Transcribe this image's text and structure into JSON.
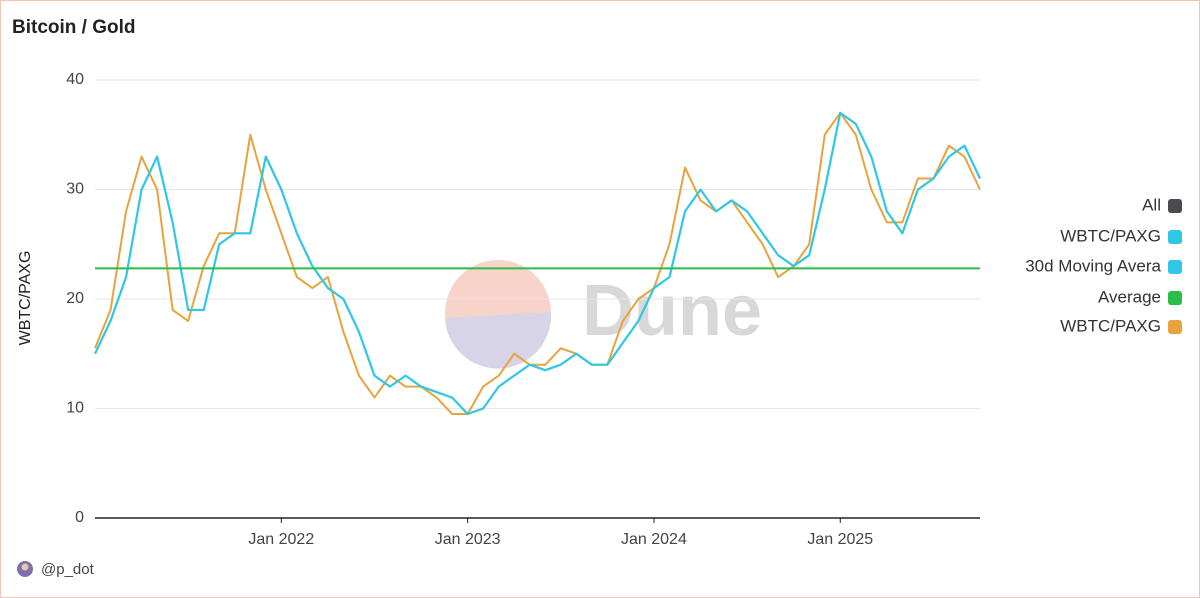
{
  "chart_data": {
    "type": "line",
    "title": "Bitcoin / Gold",
    "y_label": "WBTC/PAXG",
    "watermark": "Dune",
    "author": "@p_dot",
    "x": [
      "2021-01",
      "2021-02",
      "2021-03",
      "2021-04",
      "2021-05",
      "2021-06",
      "2021-07",
      "2021-08",
      "2021-09",
      "2021-10",
      "2021-11",
      "2021-12",
      "2022-01",
      "2022-02",
      "2022-03",
      "2022-04",
      "2022-05",
      "2022-06",
      "2022-07",
      "2022-08",
      "2022-09",
      "2022-10",
      "2022-11",
      "2022-12",
      "2023-01",
      "2023-02",
      "2023-03",
      "2023-04",
      "2023-05",
      "2023-06",
      "2023-07",
      "2023-08",
      "2023-09",
      "2023-10",
      "2023-11",
      "2023-12",
      "2024-01",
      "2024-02",
      "2024-03",
      "2024-04",
      "2024-05",
      "2024-06",
      "2024-07",
      "2024-08",
      "2024-09",
      "2024-10",
      "2024-11",
      "2024-12",
      "2025-01",
      "2025-02",
      "2025-03",
      "2025-04",
      "2025-05",
      "2025-06",
      "2025-07",
      "2025-08",
      "2025-09",
      "2025-10"
    ],
    "xlim": [
      "2021-01",
      "2025-10"
    ],
    "xticks": [
      {
        "value": "2022-01",
        "label": "Jan 2022"
      },
      {
        "value": "2023-01",
        "label": "Jan 2023"
      },
      {
        "value": "2024-01",
        "label": "Jan 2024"
      },
      {
        "value": "2025-01",
        "label": "Jan 2025"
      }
    ],
    "ylim": [
      0,
      40
    ],
    "yticks": [
      0,
      10,
      20,
      30,
      40
    ],
    "grid": true,
    "legend_position": "right",
    "series": [
      {
        "name": "All",
        "color": "#4a4a4f"
      },
      {
        "name": "WBTC/PAXG",
        "color": "#2ec7e6"
      },
      {
        "name": "30d Moving Avera",
        "color": "#2ec7e6",
        "values": [
          15,
          18,
          22,
          30,
          33,
          27,
          19,
          19,
          25,
          26,
          26,
          33,
          30,
          26,
          23,
          21,
          20,
          17,
          13,
          12,
          13,
          12,
          11.5,
          11,
          9.5,
          10,
          12,
          13,
          14,
          13.5,
          14,
          15,
          14,
          14,
          16,
          18,
          21,
          22,
          28,
          30,
          28,
          29,
          28,
          26,
          24,
          23,
          24,
          30,
          37,
          36,
          33,
          28,
          26,
          30,
          31,
          33,
          34,
          31
        ]
      },
      {
        "name": "Average",
        "color": "#2bbd47",
        "value": 22.8
      },
      {
        "name": "WBTC/PAXG",
        "color": "#e8a33d",
        "values": [
          15.5,
          19,
          28,
          33,
          30,
          19,
          18,
          23,
          26,
          26,
          35,
          30,
          26,
          22,
          21,
          22,
          17,
          13,
          11,
          13,
          12,
          12,
          11,
          9.5,
          9.5,
          12,
          13,
          15,
          14,
          14,
          15.5,
          15,
          14,
          14,
          18,
          20,
          21,
          25,
          32,
          29,
          28,
          29,
          27,
          25,
          22,
          23,
          25,
          35,
          37,
          35,
          30,
          27,
          27,
          31,
          31,
          34,
          33,
          30
        ]
      }
    ]
  }
}
